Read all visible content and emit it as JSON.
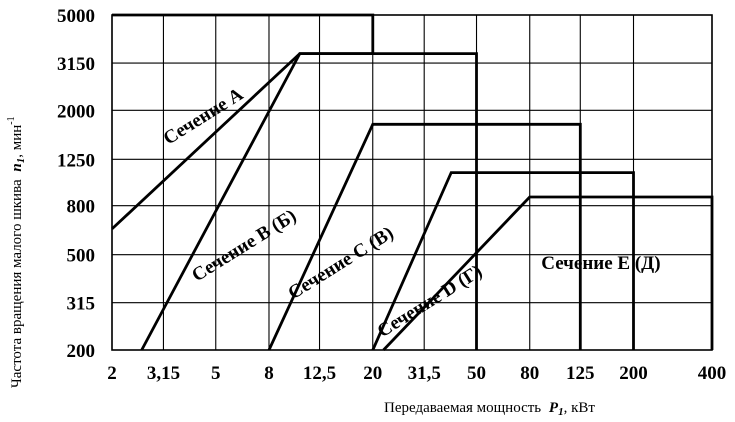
{
  "chart_data": {
    "type": "line",
    "title": "",
    "x_scale": "log",
    "y_scale": "log",
    "grid": true,
    "xlabel": {
      "text": "Передаваемая мощность",
      "symbol": "P",
      "subscript": "1",
      "unit": ", кВт"
    },
    "ylabel": {
      "text": "Частота вращения малого шкива",
      "symbol": "n",
      "subscript": "1",
      "unit": ", мин",
      "unit_sup": "-1"
    },
    "x_ticks": [
      "2",
      "3,15",
      "5",
      "8",
      "12,5",
      "20",
      "31,5",
      "50",
      "80",
      "125",
      "200",
      "400"
    ],
    "x_tick_values": [
      2,
      3.15,
      5,
      8,
      12.5,
      20,
      31.5,
      50,
      80,
      125,
      200,
      400
    ],
    "y_ticks": [
      "200",
      "315",
      "500",
      "800",
      "1250",
      "2000",
      "3150",
      "5000"
    ],
    "y_tick_values": [
      200,
      315,
      500,
      800,
      1250,
      2000,
      3150,
      5000
    ],
    "xlim": [
      2,
      400
    ],
    "ylim": [
      200,
      5000
    ],
    "series": [
      {
        "name": "Сечение  А",
        "points": [
          [
            2,
            640
          ],
          [
            10.5,
            3450
          ],
          [
            20,
            3450
          ],
          [
            20,
            5000
          ],
          [
            2,
            5000
          ]
        ]
      },
      {
        "name": "Сечение В (Б)",
        "points": [
          [
            2.6,
            200
          ],
          [
            10.5,
            3450
          ],
          [
            50,
            3450
          ],
          [
            50,
            200
          ]
        ]
      },
      {
        "name": "Сечение С (В)",
        "points": [
          [
            8,
            200
          ],
          [
            20,
            1750
          ],
          [
            125,
            1750
          ],
          [
            125,
            200
          ]
        ]
      },
      {
        "name": "Сечение D (Г)",
        "points": [
          [
            20,
            200
          ],
          [
            40,
            1100
          ],
          [
            200,
            1100
          ],
          [
            200,
            200
          ]
        ]
      },
      {
        "name": "Сечение Е (Д)",
        "points": [
          [
            22,
            200
          ],
          [
            80,
            870
          ],
          [
            400,
            870
          ],
          [
            400,
            200
          ]
        ]
      }
    ]
  }
}
